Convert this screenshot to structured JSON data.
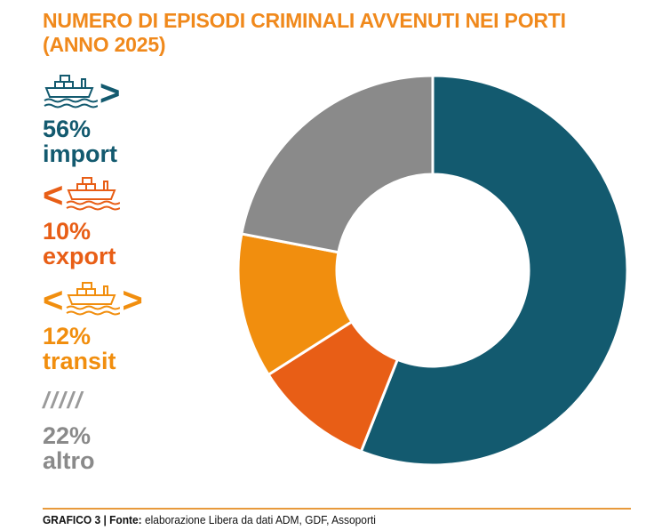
{
  "title_lines": [
    "NUMERO DI EPISODI CRIMINALI AVVENUTI NEI PORTI",
    "(ANNO 2025)"
  ],
  "footer": {
    "label": "GRAFICO 3 | ",
    "source_label": "Fonte:",
    "source_text": " elaborazione Libera da dati ADM, GDF, Assoporti"
  },
  "legend": [
    {
      "pct": "56%",
      "label": "import",
      "color": "#135a6f",
      "icon": "ship-icon",
      "left_chev": "",
      "right_chev": ">"
    },
    {
      "pct": "10%",
      "label": "export",
      "color": "#e85e16",
      "icon": "ship-icon",
      "left_chev": "<",
      "right_chev": ""
    },
    {
      "pct": "12%",
      "label": "transit",
      "color": "#f18e0e",
      "icon": "ship-icon",
      "left_chev": "<",
      "right_chev": ">"
    },
    {
      "pct": "22%",
      "label": "altro",
      "color": "#8a8a8a",
      "icon": "slashes-icon",
      "left_chev": "",
      "right_chev": ""
    }
  ],
  "chart_data": {
    "type": "pie",
    "variant": "donut",
    "title": "NUMERO DI EPISODI CRIMINALI AVVENUTI NEI PORTI (ANNO 2025)",
    "categories": [
      "import",
      "export",
      "transit",
      "altro"
    ],
    "values": [
      56,
      10,
      12,
      22
    ],
    "unit": "%",
    "colors": [
      "#135a6f",
      "#e85e16",
      "#f18e0e",
      "#8a8a8a"
    ],
    "legend_placement": "left"
  }
}
